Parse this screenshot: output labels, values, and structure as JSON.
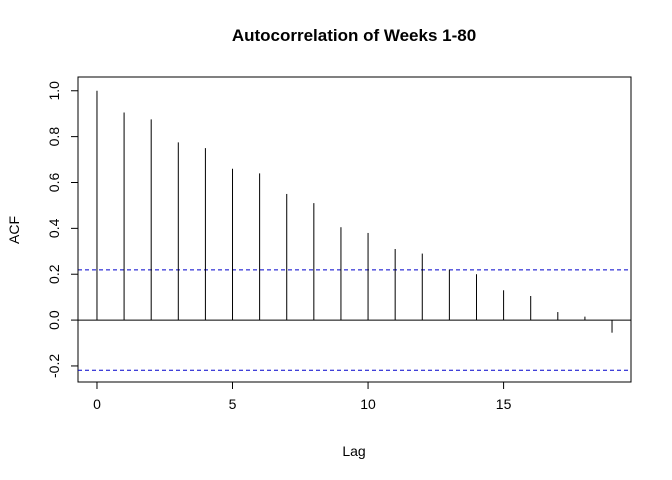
{
  "chart_data": {
    "type": "bar",
    "title": "Autocorrelation of Weeks 1-80",
    "xlabel": "Lag",
    "ylabel": "ACF",
    "xlim": [
      -0.7,
      19.7
    ],
    "ylim": [
      -0.27,
      1.06
    ],
    "x_ticks": [
      0,
      5,
      10,
      15
    ],
    "y_ticks": [
      -0.2,
      0.0,
      0.2,
      0.4,
      0.6,
      0.8,
      1.0
    ],
    "x_tick_labels": [
      "0",
      "5",
      "10",
      "15"
    ],
    "y_tick_labels": [
      "-0.2",
      "0.0",
      "0.2",
      "0.4",
      "0.6",
      "0.8",
      "1.0"
    ],
    "lags": [
      0,
      1,
      2,
      3,
      4,
      5,
      6,
      7,
      8,
      9,
      10,
      11,
      12,
      13,
      14,
      15,
      16,
      17,
      18,
      19
    ],
    "acf": [
      1.0,
      0.905,
      0.875,
      0.775,
      0.75,
      0.66,
      0.64,
      0.55,
      0.51,
      0.405,
      0.38,
      0.31,
      0.29,
      0.22,
      0.2,
      0.13,
      0.105,
      0.035,
      0.015,
      -0.055
    ],
    "confidence_bound": 0.219,
    "confidence_color": "#0000cc",
    "grid": false
  }
}
